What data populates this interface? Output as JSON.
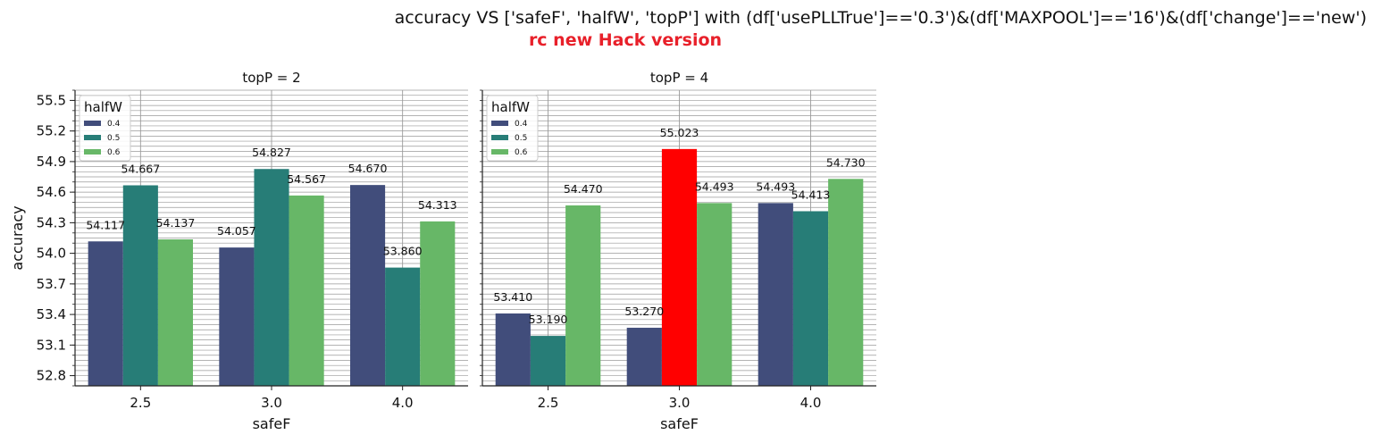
{
  "title": "accuracy VS ['safeF', 'halfW', 'topP'] with (df['usePLLTrue']=='0.3')&(df['MAXPOOL']=='16')&(df['change']=='new')",
  "subtitle": "rc new Hack version",
  "colors": {
    "subtitle": "#e8202a",
    "series": [
      "#414d7b",
      "#277d77",
      "#67b767"
    ],
    "highlight": "#ff0000"
  },
  "chart_data": [
    {
      "type": "bar",
      "title": "topP = 2",
      "xlabel": "safeF",
      "ylabel": "accuracy",
      "categories": [
        "2.5",
        "3.0",
        "4.0"
      ],
      "ylim": [
        52.7,
        55.6
      ],
      "yticks": [
        "52.8",
        "53.1",
        "53.4",
        "53.7",
        "54.0",
        "54.3",
        "54.6",
        "54.9",
        "55.2",
        "55.5"
      ],
      "legend": {
        "title": "halfW",
        "position": "top-left"
      },
      "grid": true,
      "series": [
        {
          "name": "0.4",
          "values": [
            54.117,
            54.057,
            54.67
          ]
        },
        {
          "name": "0.5",
          "values": [
            54.667,
            54.827,
            53.86
          ]
        },
        {
          "name": "0.6",
          "values": [
            54.137,
            54.567,
            54.313
          ]
        }
      ],
      "labels": [
        [
          "54.117",
          "54.057",
          "54.670"
        ],
        [
          "54.667",
          "54.827",
          "53.860"
        ],
        [
          "54.137",
          "54.567",
          "54.313"
        ]
      ],
      "highlight": null
    },
    {
      "type": "bar",
      "title": "topP = 4",
      "xlabel": "safeF",
      "ylabel": "",
      "categories": [
        "2.5",
        "3.0",
        "4.0"
      ],
      "ylim": [
        52.7,
        55.6
      ],
      "legend": {
        "title": "halfW",
        "position": "top-left"
      },
      "grid": true,
      "series": [
        {
          "name": "0.4",
          "values": [
            53.41,
            53.27,
            54.493
          ]
        },
        {
          "name": "0.5",
          "values": [
            53.19,
            55.023,
            54.413
          ]
        },
        {
          "name": "0.6",
          "values": [
            54.47,
            54.493,
            54.73
          ]
        }
      ],
      "labels": [
        [
          "53.410",
          "53.270",
          "54.493"
        ],
        [
          "53.190",
          "55.023",
          "54.413"
        ],
        [
          "54.470",
          "54.493",
          "54.730"
        ]
      ],
      "highlight": {
        "series": 1,
        "category": 1
      }
    }
  ]
}
